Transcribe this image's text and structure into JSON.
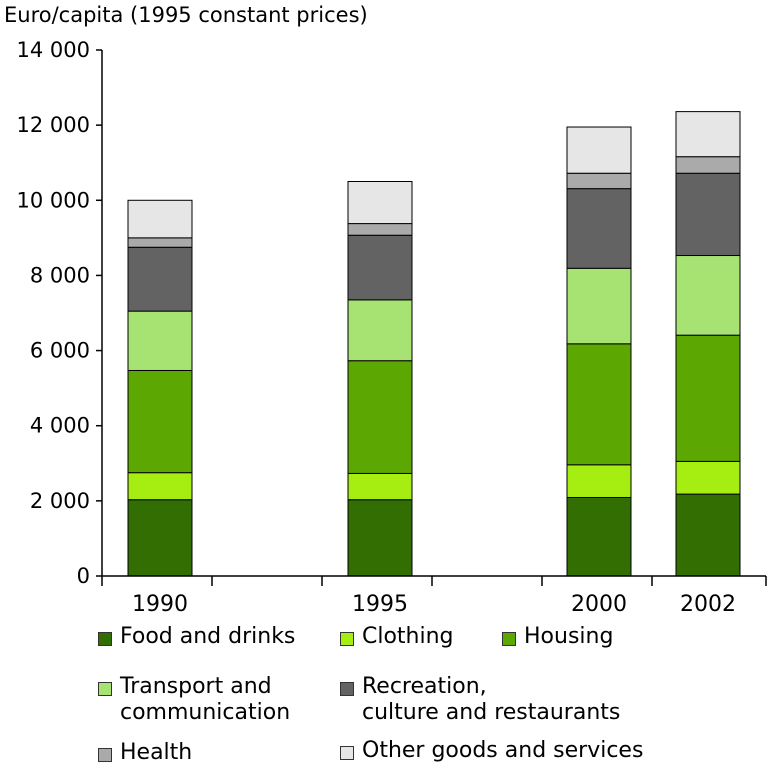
{
  "chart_data": {
    "type": "bar",
    "stacked": true,
    "ylabel": "Euro/capita (1995 constant prices)",
    "ylim": [
      0,
      14000
    ],
    "yticks": [
      "0",
      "2 000",
      "4 000",
      "6 000",
      "8 000",
      "10 000",
      "12 000",
      "14 000"
    ],
    "ytick_values": [
      0,
      2000,
      4000,
      6000,
      8000,
      10000,
      12000,
      14000
    ],
    "categories": [
      "1990",
      "1995",
      "2000",
      "2002"
    ],
    "grid": false,
    "legend_position": "bottom",
    "series": [
      {
        "name": "Food and drinks",
        "color": "#336e02",
        "values": [
          2030,
          2030,
          2090,
          2180
        ]
      },
      {
        "name": "Clothing",
        "color": "#a6ee12",
        "values": [
          720,
          700,
          870,
          870
        ]
      },
      {
        "name": "Housing",
        "color": "#5da702",
        "values": [
          2720,
          3000,
          3220,
          3360
        ]
      },
      {
        "name": "Transport and\ncommunication",
        "color": "#a6e373",
        "values": [
          1580,
          1620,
          2010,
          2120
        ]
      },
      {
        "name": "Recreation,\nculture and restaurants",
        "color": "#636363",
        "values": [
          1700,
          1720,
          2120,
          2190
        ]
      },
      {
        "name": "Health",
        "color": "#aaaaaa",
        "values": [
          250,
          310,
          410,
          440
        ]
      },
      {
        "name": "Other goods and services",
        "color": "#e6e6e6",
        "values": [
          1000,
          1120,
          1230,
          1200
        ]
      }
    ]
  }
}
